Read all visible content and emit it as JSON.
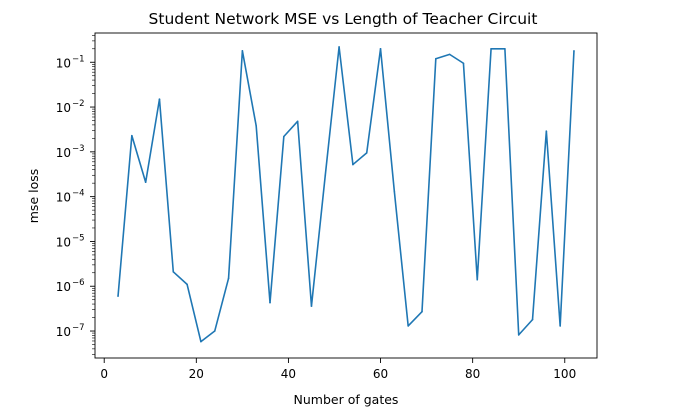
{
  "chart_data": {
    "type": "line",
    "title": "Student Network MSE vs Length of Teacher Circuit",
    "xlabel": "Number of gates",
    "ylabel": "mse loss",
    "yscale": "log",
    "xlim": [
      -2,
      107
    ],
    "ylim": [
      2.5e-08,
      0.45
    ],
    "xticks": [
      0,
      20,
      40,
      60,
      80,
      100
    ],
    "yticks": [
      {
        "value": 1e-07,
        "base": "10",
        "exp": "−7"
      },
      {
        "value": 1e-06,
        "base": "10",
        "exp": "−6"
      },
      {
        "value": 1e-05,
        "base": "10",
        "exp": "−5"
      },
      {
        "value": 0.0001,
        "base": "10",
        "exp": "−4"
      },
      {
        "value": 0.001,
        "base": "10",
        "exp": "−3"
      },
      {
        "value": 0.01,
        "base": "10",
        "exp": "−2"
      },
      {
        "value": 0.1,
        "base": "10",
        "exp": "−1"
      }
    ],
    "grid": false,
    "series": [
      {
        "color": "#1f77b4",
        "x": [
          3,
          6,
          9,
          12,
          15,
          18,
          21,
          24,
          27,
          30,
          33,
          36,
          39,
          42,
          45,
          48,
          51,
          54,
          57,
          60,
          63,
          66,
          69,
          72,
          75,
          78,
          81,
          84,
          87,
          90,
          93,
          96,
          99,
          102
        ],
        "y": [
          6e-07,
          0.0023,
          0.00021,
          0.015,
          2.1e-06,
          1.1e-06,
          5.8e-08,
          1e-07,
          1.5e-06,
          0.18,
          0.0038,
          4.3e-07,
          0.0022,
          0.0048,
          3.6e-07,
          0.0003,
          0.22,
          0.00052,
          0.00095,
          0.2,
          0.00013,
          1.3e-07,
          2.7e-07,
          0.12,
          0.15,
          0.095,
          1.4e-06,
          0.2,
          0.2,
          8.2e-08,
          1.8e-07,
          0.0029,
          1.3e-07,
          0.18
        ]
      }
    ]
  }
}
